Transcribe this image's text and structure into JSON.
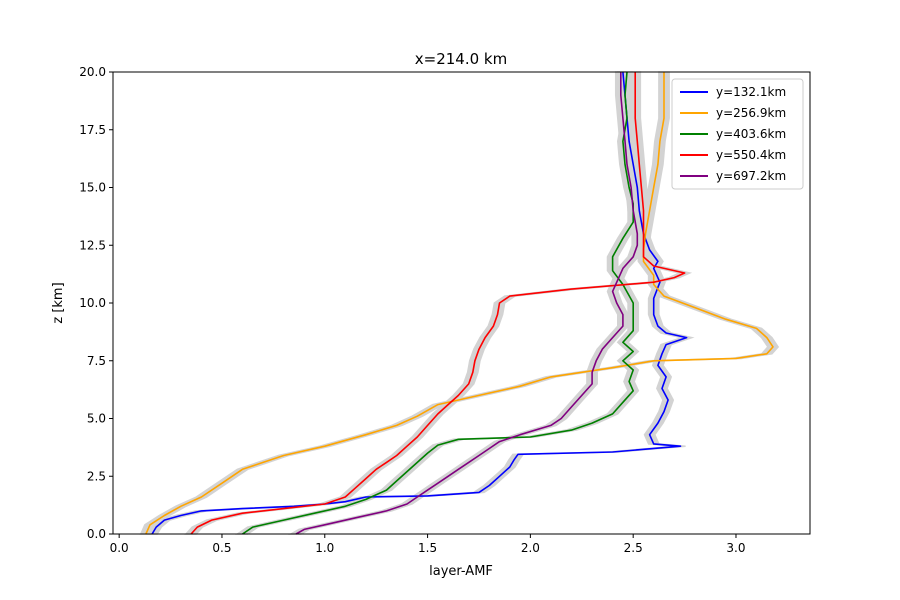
{
  "chart_data": {
    "type": "line",
    "title": "x=214.0 km",
    "xlabel": "layer-AMF",
    "ylabel": "z [km]",
    "xlim": [
      -0.03,
      3.36
    ],
    "ylim": [
      0,
      20
    ],
    "xticks": [
      0.0,
      0.5,
      1.0,
      1.5,
      2.0,
      2.5,
      3.0
    ],
    "xtick_labels": [
      "0.0",
      "0.5",
      "1.0",
      "1.5",
      "2.0",
      "2.5",
      "3.0"
    ],
    "yticks": [
      0.0,
      2.5,
      5.0,
      7.5,
      10.0,
      12.5,
      15.0,
      17.5,
      20.0
    ],
    "ytick_labels": [
      "0.0",
      "2.5",
      "5.0",
      "7.5",
      "10.0",
      "12.5",
      "15.0",
      "17.5",
      "20.0"
    ],
    "legend_position": "top-right",
    "uncertainty_band_color": "#d3d3d3",
    "grid": false,
    "series": [
      {
        "name": "y=132.1km",
        "color": "#0000ff",
        "points": [
          [
            0.16,
            0.0
          ],
          [
            0.18,
            0.3
          ],
          [
            0.22,
            0.6
          ],
          [
            0.3,
            0.8
          ],
          [
            0.4,
            1.0
          ],
          [
            0.6,
            1.1
          ],
          [
            0.85,
            1.2
          ],
          [
            1.0,
            1.3
          ],
          [
            1.1,
            1.4
          ],
          [
            1.2,
            1.6
          ],
          [
            1.5,
            1.65
          ],
          [
            1.75,
            1.8
          ],
          [
            1.8,
            2.1
          ],
          [
            1.85,
            2.5
          ],
          [
            1.9,
            2.9
          ],
          [
            1.92,
            3.2
          ],
          [
            1.94,
            3.45
          ],
          [
            2.4,
            3.55
          ],
          [
            2.73,
            3.8
          ],
          [
            2.6,
            3.9
          ],
          [
            2.58,
            4.3
          ],
          [
            2.62,
            4.8
          ],
          [
            2.65,
            5.3
          ],
          [
            2.67,
            5.8
          ],
          [
            2.64,
            6.3
          ],
          [
            2.66,
            6.8
          ],
          [
            2.62,
            7.3
          ],
          [
            2.64,
            7.8
          ],
          [
            2.66,
            8.2
          ],
          [
            2.76,
            8.5
          ],
          [
            2.66,
            8.7
          ],
          [
            2.62,
            9.0
          ],
          [
            2.6,
            9.5
          ],
          [
            2.6,
            10.2
          ],
          [
            2.63,
            10.9
          ],
          [
            2.6,
            11.5
          ],
          [
            2.62,
            11.8
          ],
          [
            2.58,
            12.3
          ],
          [
            2.55,
            13.0
          ],
          [
            2.53,
            14.0
          ],
          [
            2.52,
            15.0
          ],
          [
            2.5,
            16.0
          ],
          [
            2.48,
            17.0
          ],
          [
            2.47,
            18.0
          ],
          [
            2.46,
            19.0
          ],
          [
            2.45,
            20.0
          ]
        ]
      },
      {
        "name": "y=256.9km",
        "color": "#ffa500",
        "points": [
          [
            0.13,
            0.0
          ],
          [
            0.15,
            0.4
          ],
          [
            0.22,
            0.8
          ],
          [
            0.3,
            1.2
          ],
          [
            0.4,
            1.6
          ],
          [
            0.5,
            2.2
          ],
          [
            0.6,
            2.8
          ],
          [
            0.7,
            3.1
          ],
          [
            0.8,
            3.4
          ],
          [
            1.0,
            3.8
          ],
          [
            1.2,
            4.3
          ],
          [
            1.35,
            4.7
          ],
          [
            1.45,
            5.1
          ],
          [
            1.55,
            5.6
          ],
          [
            1.75,
            6.0
          ],
          [
            1.95,
            6.4
          ],
          [
            2.1,
            6.8
          ],
          [
            2.4,
            7.2
          ],
          [
            2.6,
            7.5
          ],
          [
            3.0,
            7.6
          ],
          [
            3.15,
            7.8
          ],
          [
            3.18,
            8.1
          ],
          [
            3.15,
            8.5
          ],
          [
            3.1,
            8.9
          ],
          [
            2.95,
            9.3
          ],
          [
            2.8,
            9.8
          ],
          [
            2.65,
            10.3
          ],
          [
            2.6,
            10.8
          ],
          [
            2.6,
            11.2
          ],
          [
            2.55,
            11.8
          ],
          [
            2.55,
            12.3
          ],
          [
            2.56,
            13.0
          ],
          [
            2.58,
            14.0
          ],
          [
            2.6,
            15.0
          ],
          [
            2.62,
            16.0
          ],
          [
            2.63,
            17.0
          ],
          [
            2.65,
            18.0
          ],
          [
            2.65,
            19.0
          ],
          [
            2.65,
            20.0
          ]
        ]
      },
      {
        "name": "y=403.6km",
        "color": "#008000",
        "points": [
          [
            0.6,
            0.0
          ],
          [
            0.65,
            0.3
          ],
          [
            0.8,
            0.6
          ],
          [
            0.95,
            0.9
          ],
          [
            1.1,
            1.2
          ],
          [
            1.2,
            1.5
          ],
          [
            1.3,
            1.9
          ],
          [
            1.35,
            2.3
          ],
          [
            1.4,
            2.7
          ],
          [
            1.45,
            3.1
          ],
          [
            1.5,
            3.5
          ],
          [
            1.55,
            3.85
          ],
          [
            1.65,
            4.1
          ],
          [
            2.0,
            4.2
          ],
          [
            2.2,
            4.5
          ],
          [
            2.3,
            4.8
          ],
          [
            2.4,
            5.2
          ],
          [
            2.45,
            5.7
          ],
          [
            2.5,
            6.2
          ],
          [
            2.48,
            6.6
          ],
          [
            2.5,
            7.1
          ],
          [
            2.45,
            7.5
          ],
          [
            2.5,
            7.9
          ],
          [
            2.45,
            8.3
          ],
          [
            2.5,
            8.8
          ],
          [
            2.5,
            9.3
          ],
          [
            2.5,
            10.0
          ],
          [
            2.45,
            10.8
          ],
          [
            2.4,
            11.4
          ],
          [
            2.4,
            12.0
          ],
          [
            2.45,
            12.8
          ],
          [
            2.5,
            13.5
          ],
          [
            2.5,
            14.3
          ],
          [
            2.48,
            15.0
          ],
          [
            2.46,
            16.0
          ],
          [
            2.45,
            17.0
          ],
          [
            2.47,
            18.0
          ],
          [
            2.46,
            19.0
          ],
          [
            2.47,
            20.0
          ]
        ]
      },
      {
        "name": "y=550.4km",
        "color": "#ff0000",
        "points": [
          [
            0.35,
            0.0
          ],
          [
            0.38,
            0.3
          ],
          [
            0.45,
            0.6
          ],
          [
            0.6,
            0.9
          ],
          [
            0.8,
            1.1
          ],
          [
            1.0,
            1.3
          ],
          [
            1.1,
            1.6
          ],
          [
            1.15,
            2.0
          ],
          [
            1.2,
            2.4
          ],
          [
            1.25,
            2.8
          ],
          [
            1.3,
            3.1
          ],
          [
            1.35,
            3.4
          ],
          [
            1.4,
            3.8
          ],
          [
            1.45,
            4.2
          ],
          [
            1.5,
            4.7
          ],
          [
            1.55,
            5.2
          ],
          [
            1.6,
            5.6
          ],
          [
            1.65,
            6.0
          ],
          [
            1.7,
            6.5
          ],
          [
            1.72,
            7.0
          ],
          [
            1.73,
            7.5
          ],
          [
            1.75,
            8.0
          ],
          [
            1.78,
            8.5
          ],
          [
            1.82,
            9.0
          ],
          [
            1.84,
            9.5
          ],
          [
            1.85,
            10.0
          ],
          [
            1.9,
            10.3
          ],
          [
            2.2,
            10.6
          ],
          [
            2.6,
            10.9
          ],
          [
            2.7,
            11.1
          ],
          [
            2.75,
            11.3
          ],
          [
            2.6,
            11.6
          ],
          [
            2.55,
            12.0
          ],
          [
            2.55,
            13.0
          ],
          [
            2.55,
            14.0
          ],
          [
            2.54,
            15.0
          ],
          [
            2.53,
            16.0
          ],
          [
            2.52,
            17.0
          ],
          [
            2.51,
            18.0
          ],
          [
            2.51,
            19.0
          ],
          [
            2.51,
            20.0
          ]
        ]
      },
      {
        "name": "y=697.2km",
        "color": "#800080",
        "points": [
          [
            0.86,
            0.0
          ],
          [
            0.9,
            0.2
          ],
          [
            1.0,
            0.4
          ],
          [
            1.15,
            0.7
          ],
          [
            1.3,
            1.0
          ],
          [
            1.4,
            1.3
          ],
          [
            1.45,
            1.6
          ],
          [
            1.5,
            1.9
          ],
          [
            1.55,
            2.2
          ],
          [
            1.6,
            2.5
          ],
          [
            1.65,
            2.8
          ],
          [
            1.7,
            3.1
          ],
          [
            1.75,
            3.4
          ],
          [
            1.8,
            3.7
          ],
          [
            1.85,
            4.0
          ],
          [
            1.95,
            4.3
          ],
          [
            2.1,
            4.7
          ],
          [
            2.15,
            5.0
          ],
          [
            2.2,
            5.5
          ],
          [
            2.25,
            6.0
          ],
          [
            2.3,
            6.5
          ],
          [
            2.3,
            7.0
          ],
          [
            2.32,
            7.5
          ],
          [
            2.35,
            8.0
          ],
          [
            2.4,
            8.5
          ],
          [
            2.45,
            9.0
          ],
          [
            2.45,
            9.5
          ],
          [
            2.42,
            10.0
          ],
          [
            2.4,
            10.5
          ],
          [
            2.45,
            11.5
          ],
          [
            2.5,
            12.0
          ],
          [
            2.52,
            12.5
          ],
          [
            2.52,
            13.0
          ],
          [
            2.5,
            14.0
          ],
          [
            2.49,
            15.0
          ],
          [
            2.47,
            16.0
          ],
          [
            2.46,
            17.0
          ],
          [
            2.45,
            18.0
          ],
          [
            2.44,
            19.0
          ],
          [
            2.44,
            20.0
          ]
        ]
      }
    ]
  }
}
